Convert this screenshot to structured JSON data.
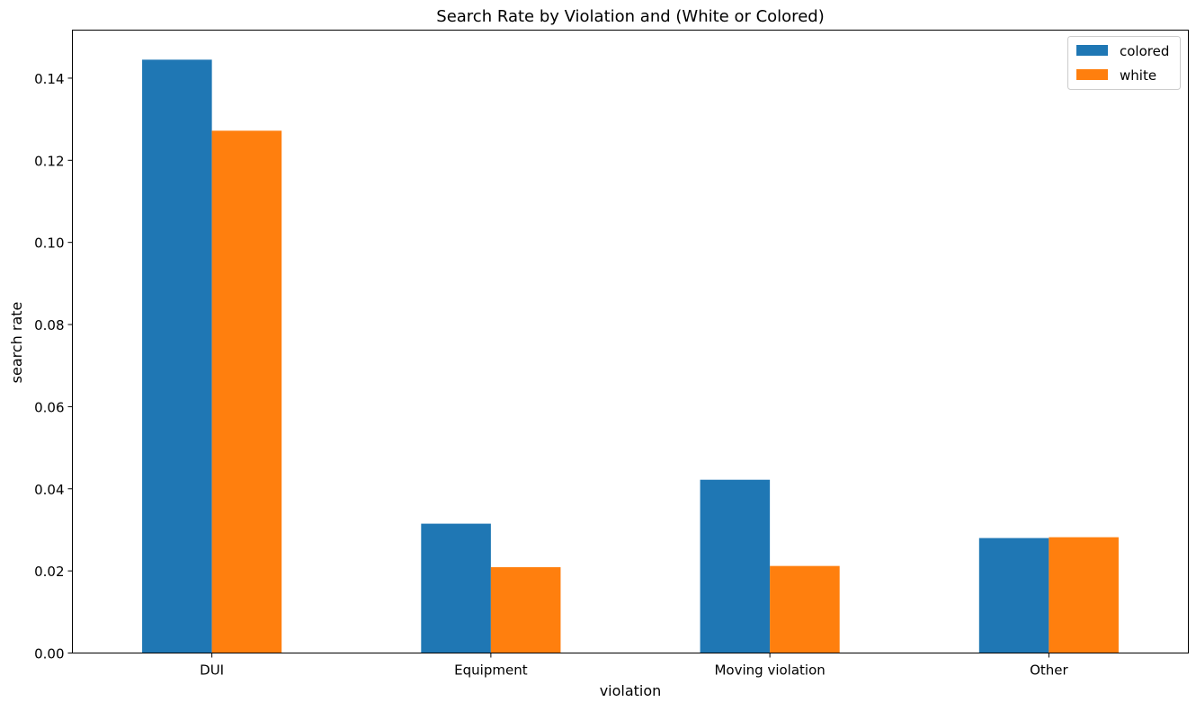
{
  "chart_data": {
    "type": "bar",
    "title": "Search Rate by Violation and (White or Colored)",
    "xlabel": "violation",
    "ylabel": "search rate",
    "categories": [
      "DUI",
      "Equipment",
      "Moving violation",
      "Other"
    ],
    "series": [
      {
        "name": "colored",
        "color": "#1f77b4",
        "values": [
          0.1445,
          0.0315,
          0.0422,
          0.028
        ]
      },
      {
        "name": "white",
        "color": "#ff7f0e",
        "values": [
          0.1272,
          0.0209,
          0.0212,
          0.0282
        ]
      }
    ],
    "ylim": [
      0,
      0.1517
    ],
    "yticks": [
      "0.00",
      "0.02",
      "0.04",
      "0.06",
      "0.08",
      "0.10",
      "0.12",
      "0.14"
    ],
    "grid": false,
    "legend_position": "top-right"
  }
}
